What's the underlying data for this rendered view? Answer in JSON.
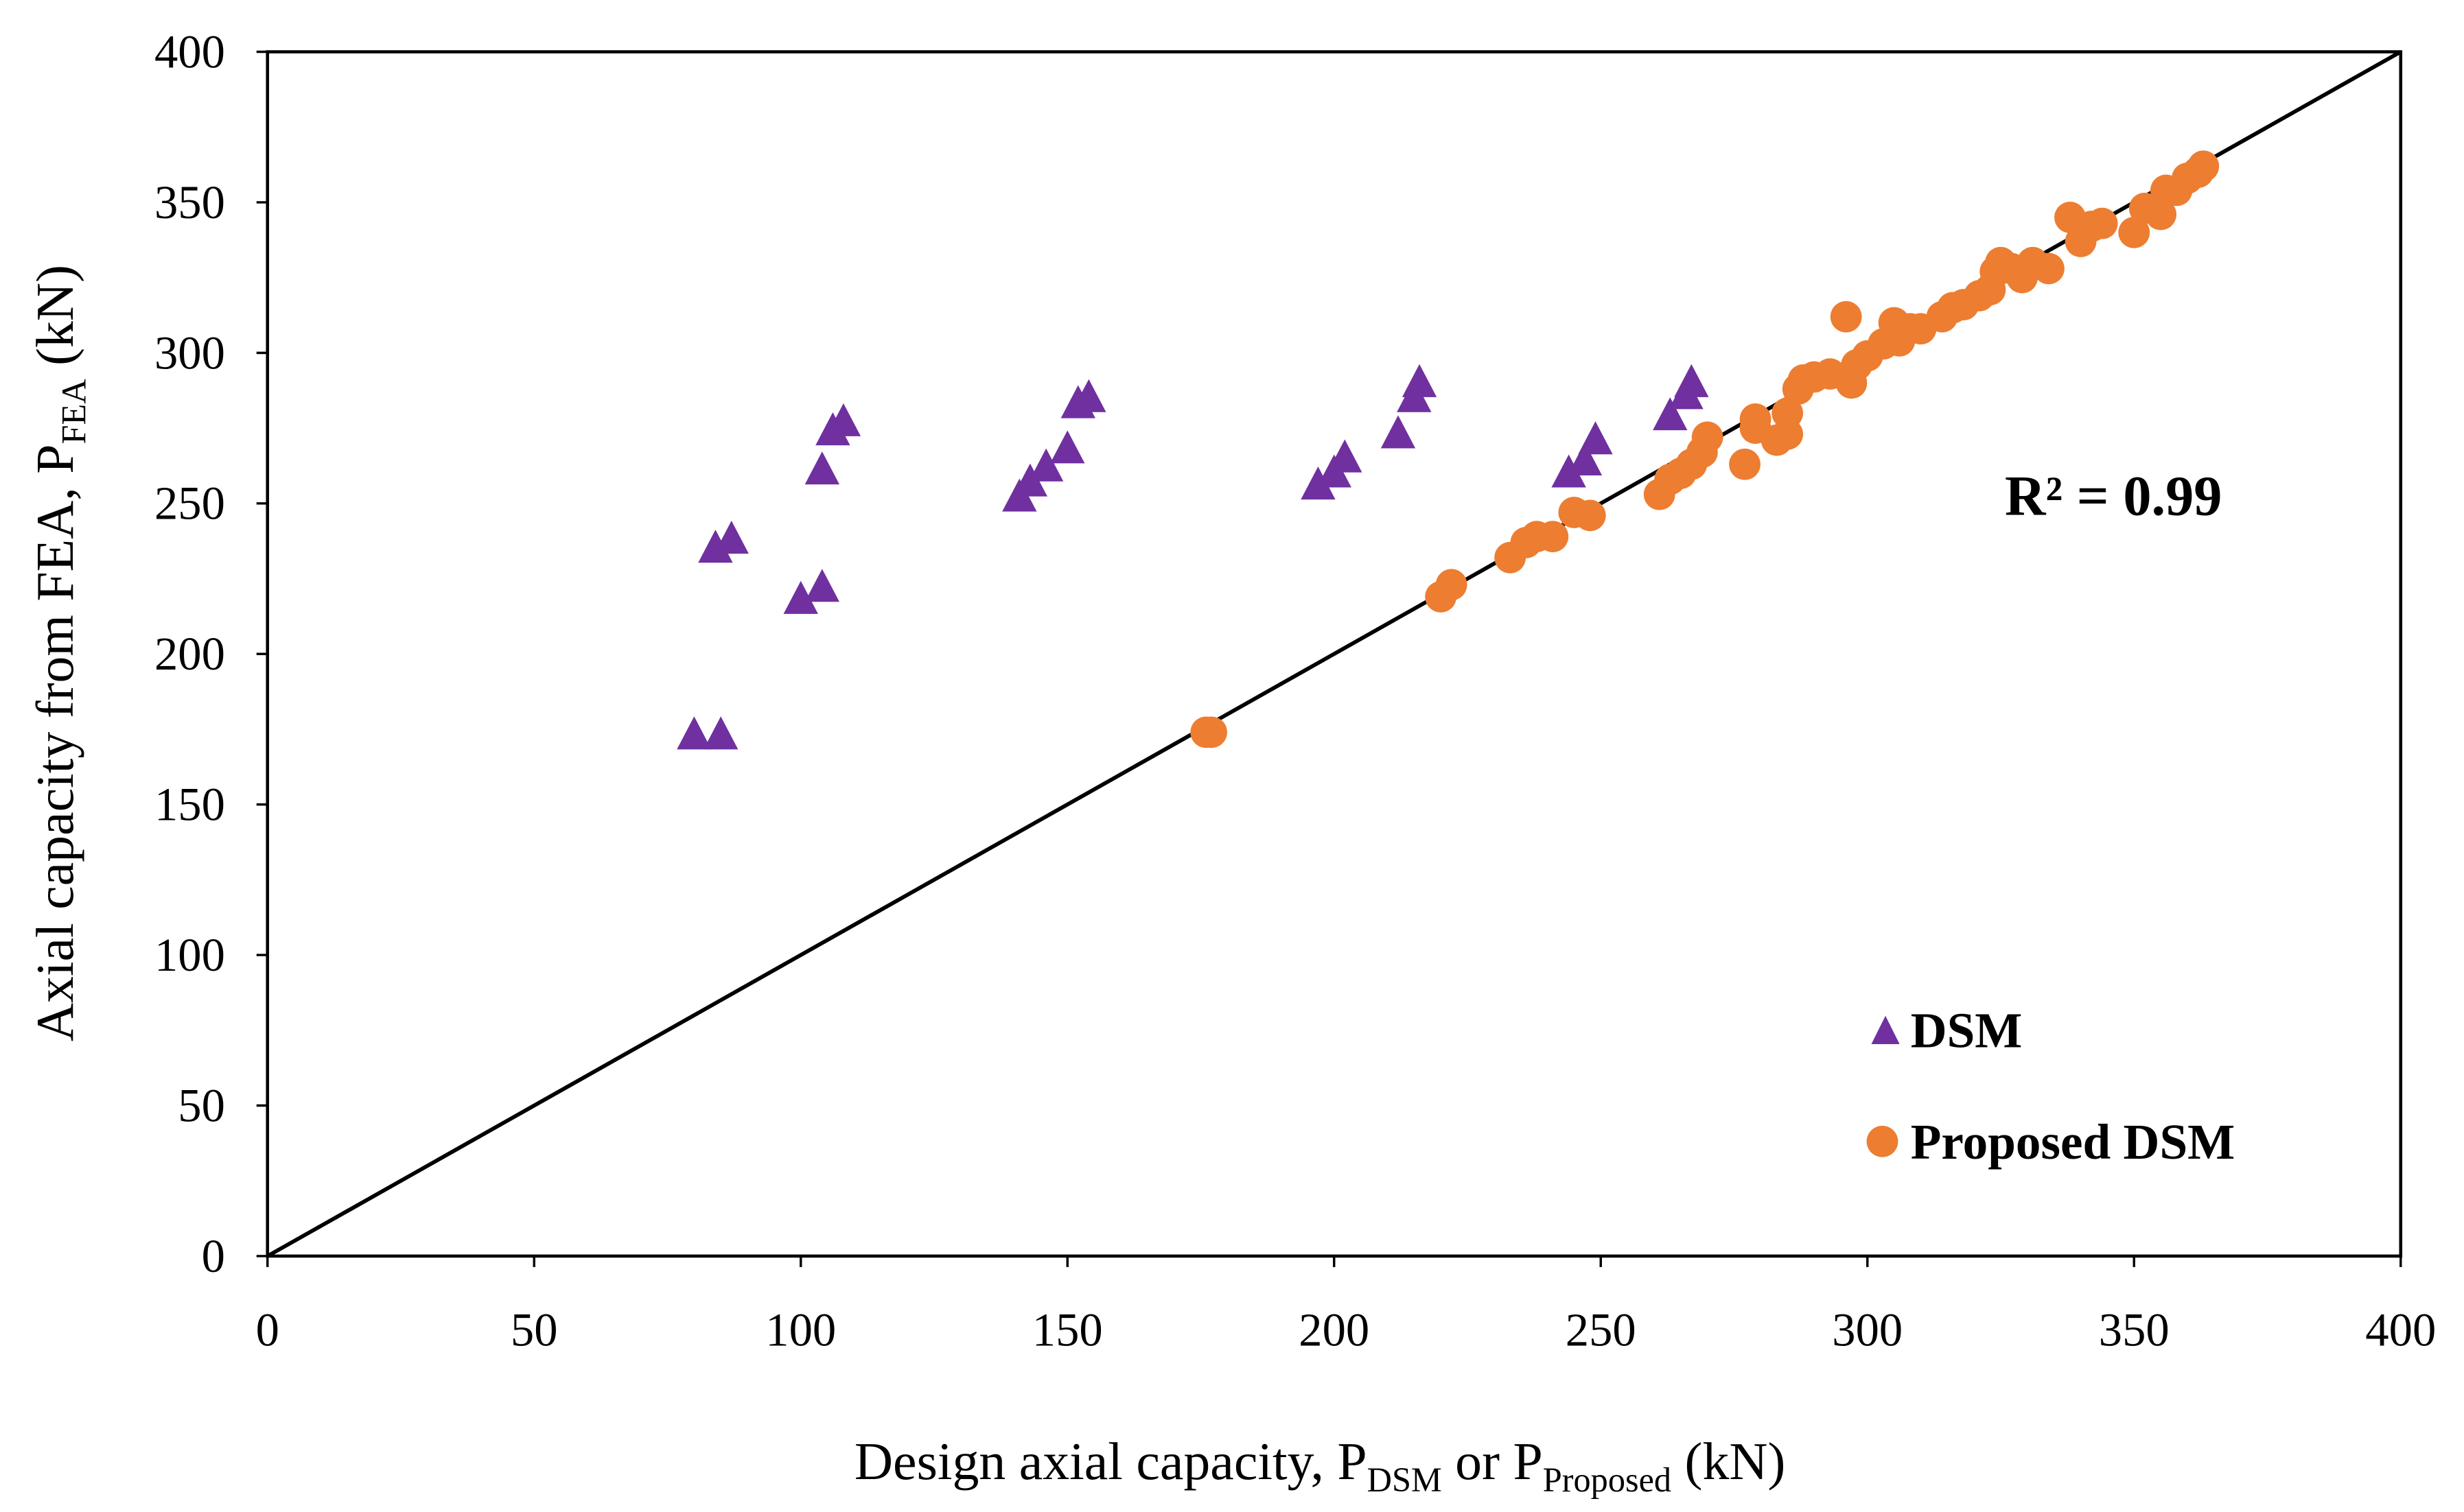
{
  "chart_data": {
    "type": "scatter",
    "title": "",
    "xlabel": {
      "main": "Design axial capacity,  P",
      "sub1": "DSM",
      "mid": " or P",
      "sub2": "Proposed",
      "end": " (kN)"
    },
    "ylabel": {
      "main": "Axial capacity from FEA, P",
      "sub": "FEA",
      "end": " (kN)"
    },
    "xlim": [
      0,
      400
    ],
    "ylim": [
      0,
      400
    ],
    "xticks": [
      0,
      50,
      100,
      150,
      200,
      250,
      300,
      350,
      400
    ],
    "yticks": [
      0,
      50,
      100,
      150,
      200,
      250,
      300,
      350,
      400
    ],
    "grid": false,
    "legend_position": "bottom-right",
    "annotation": "R² = 0.99",
    "reference_line": {
      "name": "1:1 line",
      "from": [
        0,
        0
      ],
      "to": [
        400,
        400
      ],
      "color": "#000000"
    },
    "series": [
      {
        "name": "DSM",
        "marker": "triangle",
        "color": "#7030A0",
        "points": [
          [
            80,
            173
          ],
          [
            85,
            173
          ],
          [
            84,
            235
          ],
          [
            87,
            238
          ],
          [
            100,
            218
          ],
          [
            104,
            222
          ],
          [
            104,
            261
          ],
          [
            106,
            274
          ],
          [
            108,
            277
          ],
          [
            141,
            252
          ],
          [
            143,
            257
          ],
          [
            146,
            262
          ],
          [
            150,
            268
          ],
          [
            152,
            283
          ],
          [
            154,
            285
          ],
          [
            197,
            256
          ],
          [
            200,
            260
          ],
          [
            202,
            265
          ],
          [
            212,
            273
          ],
          [
            215,
            285
          ],
          [
            216,
            290
          ],
          [
            244,
            260
          ],
          [
            247,
            264
          ],
          [
            249,
            271
          ],
          [
            263,
            279
          ],
          [
            266,
            286
          ],
          [
            267,
            290
          ]
        ]
      },
      {
        "name": "Proposed DSM",
        "marker": "circle",
        "color": "#ED7D31",
        "points": [
          [
            176,
            174
          ],
          [
            177,
            174
          ],
          [
            220,
            219
          ],
          [
            222,
            223
          ],
          [
            233,
            232
          ],
          [
            236,
            237
          ],
          [
            238,
            239
          ],
          [
            241,
            239
          ],
          [
            245,
            247
          ],
          [
            248,
            246
          ],
          [
            261,
            253
          ],
          [
            263,
            258
          ],
          [
            265,
            260
          ],
          [
            267,
            263
          ],
          [
            269,
            267
          ],
          [
            270,
            272
          ],
          [
            277,
            263
          ],
          [
            279,
            278
          ],
          [
            279,
            275
          ],
          [
            283,
            271
          ],
          [
            285,
            273
          ],
          [
            285,
            280
          ],
          [
            287,
            288
          ],
          [
            288,
            291
          ],
          [
            290,
            292
          ],
          [
            293,
            293
          ],
          [
            296,
            312
          ],
          [
            297,
            290
          ],
          [
            298,
            296
          ],
          [
            300,
            299
          ],
          [
            303,
            303
          ],
          [
            305,
            310
          ],
          [
            306,
            304
          ],
          [
            308,
            308
          ],
          [
            310,
            308
          ],
          [
            314,
            312
          ],
          [
            316,
            315
          ],
          [
            318,
            316
          ],
          [
            321,
            319
          ],
          [
            323,
            321
          ],
          [
            324,
            327
          ],
          [
            325,
            330
          ],
          [
            327,
            328
          ],
          [
            329,
            325
          ],
          [
            331,
            330
          ],
          [
            334,
            328
          ],
          [
            338,
            345
          ],
          [
            340,
            337
          ],
          [
            342,
            342
          ],
          [
            344,
            343
          ],
          [
            350,
            340
          ],
          [
            352,
            348
          ],
          [
            355,
            346
          ],
          [
            356,
            354
          ],
          [
            358,
            354
          ],
          [
            360,
            358
          ],
          [
            362,
            360
          ],
          [
            363,
            362
          ]
        ]
      }
    ]
  }
}
